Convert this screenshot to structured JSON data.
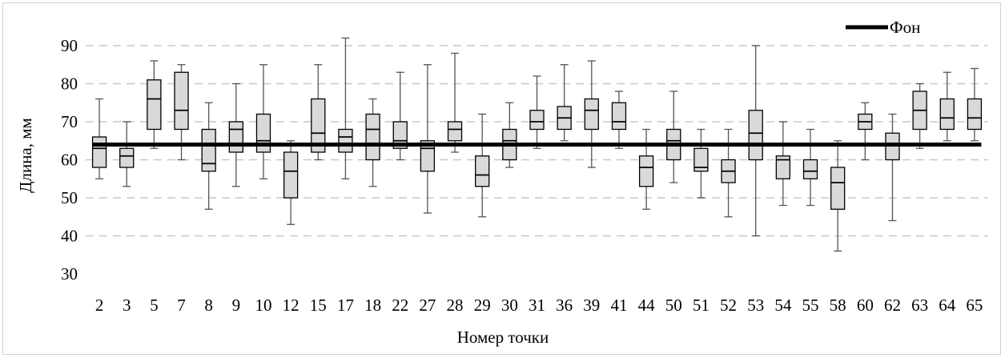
{
  "chart_data": {
    "type": "box",
    "xlabel": "Номер точки",
    "ylabel": "Длина, мм",
    "ylim": [
      30,
      90
    ],
    "yticks": [
      30,
      40,
      50,
      60,
      70,
      80,
      90
    ],
    "grid": "horizontal dashed",
    "legend_position": "top-right",
    "colors": {
      "box_fill": "#d9d9d9",
      "box_stroke": "#000000",
      "whisker": "#555555",
      "grid": "#c8c8c8",
      "reference_line": "#000000"
    },
    "reference_line": {
      "name": "Фон",
      "value": 64
    },
    "categories": [
      "2",
      "3",
      "5",
      "7",
      "8",
      "9",
      "10",
      "12",
      "15",
      "17",
      "18",
      "22",
      "27",
      "28",
      "29",
      "30",
      "31",
      "36",
      "39",
      "41",
      "44",
      "50",
      "51",
      "52",
      "53",
      "54",
      "55",
      "58",
      "60",
      "62",
      "63",
      "64",
      "65"
    ],
    "boxes": [
      {
        "min": 55,
        "q1": 58,
        "median": 63,
        "q3": 66,
        "max": 76
      },
      {
        "min": 53,
        "q1": 58,
        "median": 61,
        "q3": 63,
        "max": 70
      },
      {
        "min": 63,
        "q1": 68,
        "median": 76,
        "q3": 81,
        "max": 86
      },
      {
        "min": 60,
        "q1": 68,
        "median": 73,
        "q3": 83,
        "max": 85
      },
      {
        "min": 47,
        "q1": 57,
        "median": 59,
        "q3": 68,
        "max": 75
      },
      {
        "min": 53,
        "q1": 62,
        "median": 68,
        "q3": 70,
        "max": 80
      },
      {
        "min": 55,
        "q1": 62,
        "median": 65,
        "q3": 72,
        "max": 85
      },
      {
        "min": 43,
        "q1": 50,
        "median": 57,
        "q3": 62,
        "max": 65
      },
      {
        "min": 60,
        "q1": 62,
        "median": 67,
        "q3": 76,
        "max": 85
      },
      {
        "min": 55,
        "q1": 62,
        "median": 66,
        "q3": 68,
        "max": 92
      },
      {
        "min": 53,
        "q1": 60,
        "median": 68,
        "q3": 72,
        "max": 76
      },
      {
        "min": 60,
        "q1": 63,
        "median": 65,
        "q3": 70,
        "max": 83
      },
      {
        "min": 46,
        "q1": 57,
        "median": 63,
        "q3": 65,
        "max": 85
      },
      {
        "min": 62,
        "q1": 65,
        "median": 68,
        "q3": 70,
        "max": 88
      },
      {
        "min": 45,
        "q1": 53,
        "median": 56,
        "q3": 61,
        "max": 72
      },
      {
        "min": 58,
        "q1": 60,
        "median": 65,
        "q3": 68,
        "max": 75
      },
      {
        "min": 63,
        "q1": 68,
        "median": 70,
        "q3": 73,
        "max": 82
      },
      {
        "min": 65,
        "q1": 68,
        "median": 71,
        "q3": 74,
        "max": 85
      },
      {
        "min": 58,
        "q1": 68,
        "median": 73,
        "q3": 76,
        "max": 86
      },
      {
        "min": 63,
        "q1": 68,
        "median": 70,
        "q3": 75,
        "max": 78
      },
      {
        "min": 47,
        "q1": 53,
        "median": 58,
        "q3": 61,
        "max": 68
      },
      {
        "min": 54,
        "q1": 60,
        "median": 65,
        "q3": 68,
        "max": 78
      },
      {
        "min": 50,
        "q1": 57,
        "median": 58,
        "q3": 63,
        "max": 68
      },
      {
        "min": 45,
        "q1": 54,
        "median": 57,
        "q3": 60,
        "max": 68
      },
      {
        "min": 40,
        "q1": 60,
        "median": 67,
        "q3": 73,
        "max": 90
      },
      {
        "min": 48,
        "q1": 55,
        "median": 60,
        "q3": 61,
        "max": 70
      },
      {
        "min": 48,
        "q1": 55,
        "median": 57,
        "q3": 60,
        "max": 68
      },
      {
        "min": 36,
        "q1": 47,
        "median": 54,
        "q3": 58,
        "max": 65
      },
      {
        "min": 60,
        "q1": 68,
        "median": 70,
        "q3": 72,
        "max": 75
      },
      {
        "min": 44,
        "q1": 60,
        "median": 64,
        "q3": 67,
        "max": 72
      },
      {
        "min": 63,
        "q1": 68,
        "median": 73,
        "q3": 78,
        "max": 80
      },
      {
        "min": 65,
        "q1": 68,
        "median": 71,
        "q3": 76,
        "max": 83
      },
      {
        "min": 65,
        "q1": 68,
        "median": 71,
        "q3": 76,
        "max": 84
      }
    ]
  }
}
